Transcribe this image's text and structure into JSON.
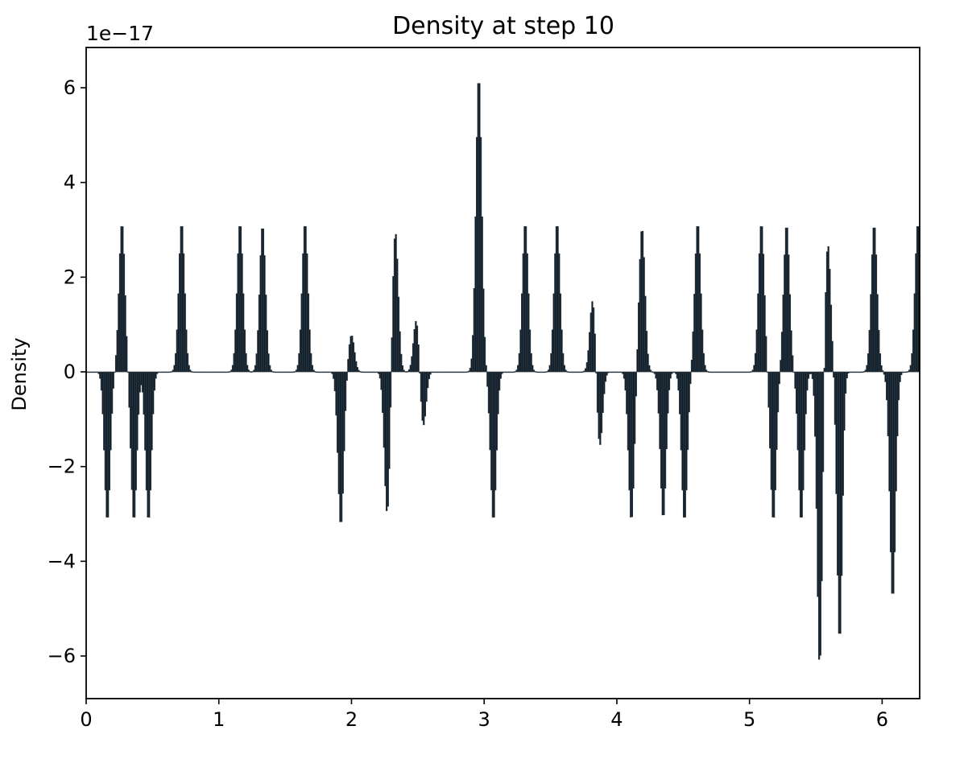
{
  "chart_data": {
    "type": "bar",
    "title": "Density at step 10",
    "ylabel": "Density",
    "xlabel": "",
    "y_offset_label": "1e−17",
    "y_scale_note": "values in units of 1e-17",
    "xlim": [
      0,
      6.283
    ],
    "ylim": [
      -6.9,
      6.85
    ],
    "xticks": [
      0,
      1,
      2,
      3,
      4,
      5,
      6
    ],
    "xtick_labels": [
      "0",
      "1",
      "2",
      "3",
      "4",
      "5",
      "6"
    ],
    "yticks": [
      -6,
      -4,
      -2,
      0,
      2,
      4,
      6
    ],
    "ytick_labels": [
      "−6",
      "−4",
      "−2",
      "0",
      "2",
      "4",
      "6"
    ],
    "bar_color": "#0d1b26",
    "bar_edge_color": "#2f3a44",
    "bin_width": 0.01,
    "grid": false,
    "peaks": [
      {
        "x": 0.16,
        "h": -3.15,
        "w": 0.022
      },
      {
        "x": 0.27,
        "h": 3.15,
        "w": 0.022
      },
      {
        "x": 0.36,
        "h": -3.15,
        "w": 0.022
      },
      {
        "x": 0.47,
        "h": -3.15,
        "w": 0.022
      },
      {
        "x": 0.72,
        "h": 3.15,
        "w": 0.022
      },
      {
        "x": 1.16,
        "h": 3.15,
        "w": 0.022
      },
      {
        "x": 1.33,
        "h": 3.1,
        "w": 0.022
      },
      {
        "x": 1.65,
        "h": 3.15,
        "w": 0.022
      },
      {
        "x": 1.92,
        "h": -3.25,
        "w": 0.022
      },
      {
        "x": 2.0,
        "h": 0.78,
        "w": 0.022
      },
      {
        "x": 2.27,
        "h": -3.05,
        "w": 0.022
      },
      {
        "x": 2.33,
        "h": 3.02,
        "w": 0.022
      },
      {
        "x": 2.49,
        "h": 1.15,
        "w": 0.022
      },
      {
        "x": 2.54,
        "h": -1.2,
        "w": 0.022
      },
      {
        "x": 2.96,
        "h": 6.25,
        "w": 0.022
      },
      {
        "x": 3.07,
        "h": -3.15,
        "w": 0.022
      },
      {
        "x": 3.31,
        "h": 3.15,
        "w": 0.022
      },
      {
        "x": 3.55,
        "h": 3.15,
        "w": 0.022
      },
      {
        "x": 3.82,
        "h": 1.6,
        "w": 0.022
      },
      {
        "x": 3.87,
        "h": -1.65,
        "w": 0.022
      },
      {
        "x": 4.11,
        "h": -3.15,
        "w": 0.022
      },
      {
        "x": 4.19,
        "h": 3.05,
        "w": 0.022
      },
      {
        "x": 4.35,
        "h": -3.1,
        "w": 0.022
      },
      {
        "x": 4.51,
        "h": -3.15,
        "w": 0.022
      },
      {
        "x": 4.61,
        "h": 3.15,
        "w": 0.022
      },
      {
        "x": 5.09,
        "h": 3.15,
        "w": 0.022
      },
      {
        "x": 5.18,
        "h": -3.15,
        "w": 0.022
      },
      {
        "x": 5.28,
        "h": 3.12,
        "w": 0.022
      },
      {
        "x": 5.39,
        "h": -3.15,
        "w": 0.022
      },
      {
        "x": 5.53,
        "h": -6.3,
        "w": 0.02
      },
      {
        "x": 5.59,
        "h": 2.75,
        "w": 0.022
      },
      {
        "x": 5.68,
        "h": -5.7,
        "w": 0.02
      },
      {
        "x": 5.94,
        "h": 3.12,
        "w": 0.022
      },
      {
        "x": 6.08,
        "h": -4.8,
        "w": 0.022
      },
      {
        "x": 6.27,
        "h": 3.15,
        "w": 0.022
      }
    ]
  }
}
